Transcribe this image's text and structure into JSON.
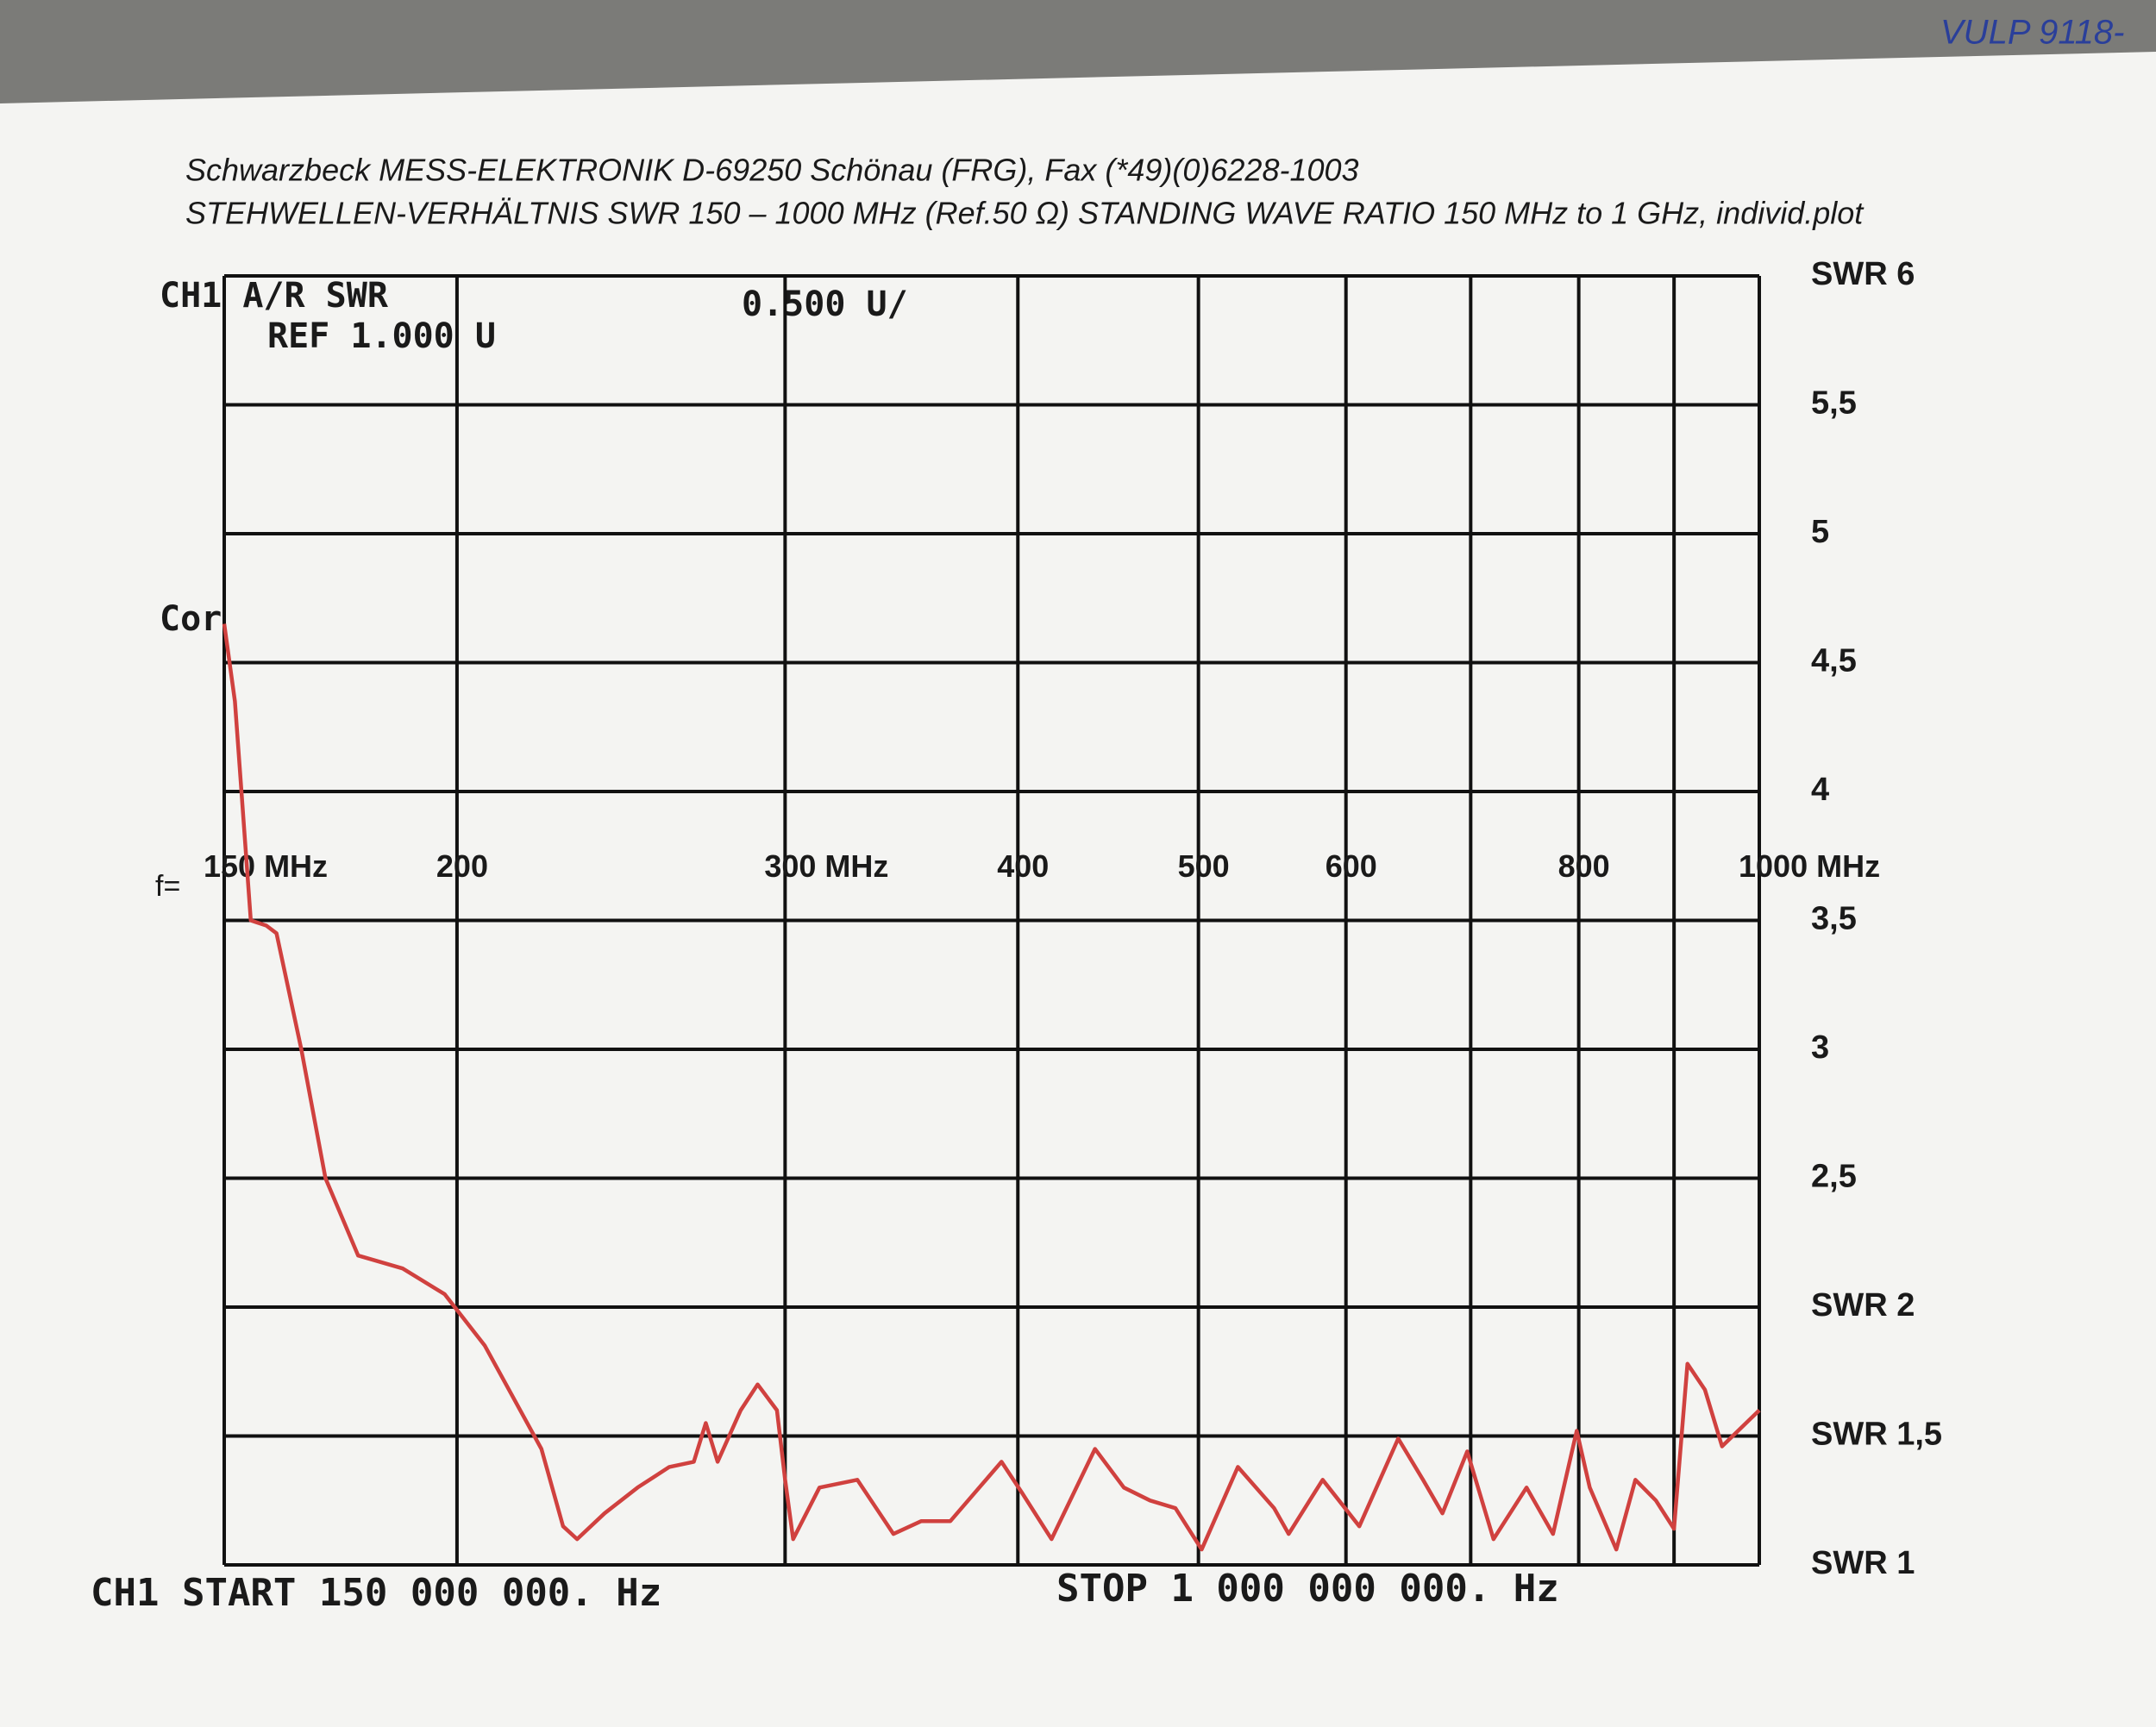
{
  "chart_data": {
    "type": "line",
    "handwritten_note": "VULP 9118-",
    "header_line_1": "Schwarzbeck MESS-ELEKTRONIK D-69250 Schönau (FRG), Fax (*49)(0)6228-1003",
    "header_line_2": "STEHWELLEN-VERHÄLTNIS  SWR  150 – 1000 MHz (Ref.50 Ω)  STANDING WAVE RATIO  150 MHz to 1 GHz, individ.plot",
    "channel_label": "CH1  A/R  SWR",
    "reference_label": "REF  1.000  U",
    "scale_label": "0.500  U/",
    "correction_label": "Cor",
    "frequency_prefix": "f=",
    "start_label": "CH1  START   150  000  000. Hz",
    "stop_label": "STOP  1  000  000  000. Hz",
    "x_log": true,
    "xlim": [
      150,
      1000
    ],
    "xticks": [
      {
        "value": 150,
        "label": "150 MHz"
      },
      200,
      {
        "value": 300,
        "label": "300 MHz"
      },
      400,
      500,
      600,
      800,
      {
        "value": 1000,
        "label": "1000 MHz"
      }
    ],
    "x_minor_ticks": [
      700,
      900
    ],
    "ylim": [
      1,
      6
    ],
    "yticks": [
      {
        "value": 1,
        "label": "SWR 1"
      },
      {
        "value": 1.5,
        "label": "SWR 1,5"
      },
      {
        "value": 2,
        "label": "SWR 2"
      },
      {
        "value": 2.5,
        "label": "2,5"
      },
      3,
      {
        "value": 3.5,
        "label": "3,5"
      },
      4,
      {
        "value": 4.5,
        "label": "4,5"
      },
      5,
      {
        "value": 5.5,
        "label": "5,5"
      },
      {
        "value": 6,
        "label": "SWR 6"
      }
    ],
    "grid": true,
    "series": [
      {
        "color": "#d0413f",
        "x": [
          150,
          152,
          155,
          158,
          160,
          165,
          170,
          177,
          187,
          197,
          207,
          222,
          228,
          232,
          240,
          250,
          260,
          268,
          272,
          276,
          284,
          290,
          297,
          300,
          303,
          313,
          328,
          343,
          355,
          368,
          392,
          402,
          417,
          440,
          456,
          471,
          486,
          502,
          525,
          549,
          559,
          583,
          610,
          640,
          660,
          676,
          697,
          720,
          750,
          775,
          798,
          811,
          838,
          858,
          880,
          900,
          915,
          935,
          955,
          1000
        ],
        "values": [
          4.65,
          4.35,
          3.5,
          3.48,
          3.45,
          3.0,
          2.5,
          2.2,
          2.15,
          2.05,
          1.85,
          1.45,
          1.15,
          1.1,
          1.2,
          1.3,
          1.38,
          1.4,
          1.55,
          1.4,
          1.6,
          1.7,
          1.6,
          1.33,
          1.1,
          1.3,
          1.33,
          1.12,
          1.17,
          1.17,
          1.4,
          1.28,
          1.1,
          1.45,
          1.3,
          1.25,
          1.22,
          1.06,
          1.38,
          1.22,
          1.12,
          1.33,
          1.15,
          1.49,
          1.33,
          1.2,
          1.44,
          1.1,
          1.3,
          1.12,
          1.52,
          1.3,
          1.06,
          1.33,
          1.25,
          1.14,
          1.78,
          1.68,
          1.46,
          1.6
        ]
      }
    ]
  }
}
